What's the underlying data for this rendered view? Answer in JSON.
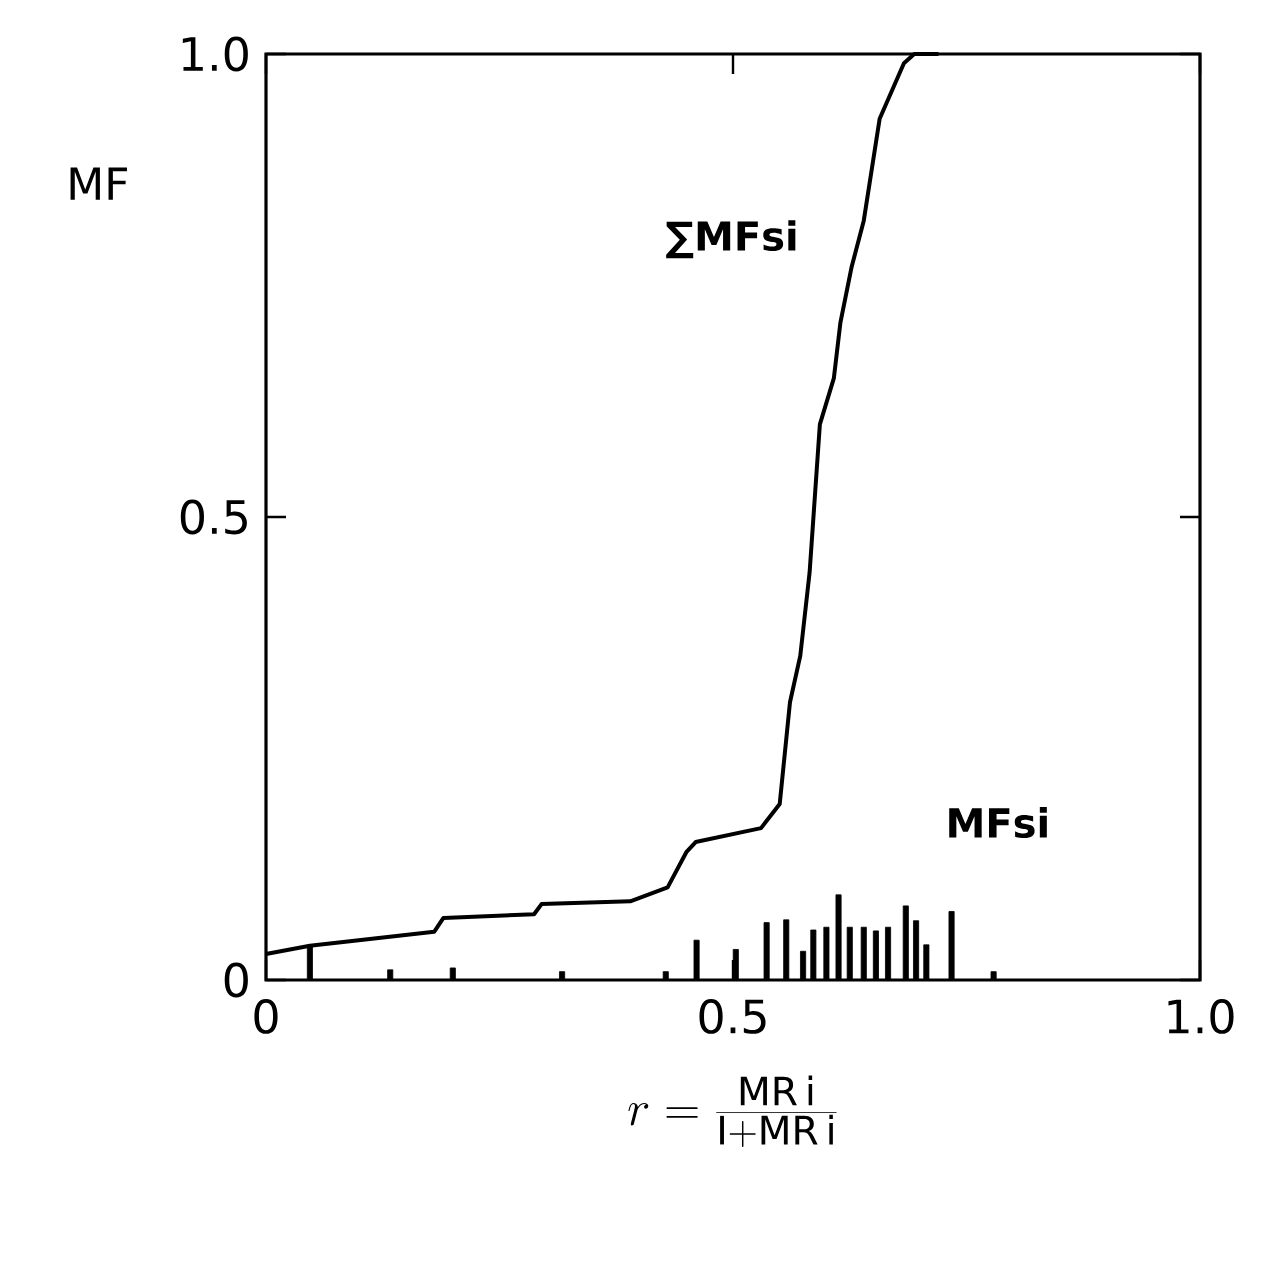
{
  "chart_data": {
    "type": "bar",
    "ylabel": "MF",
    "xlabel": "r = \\frac{\\mathrm{MR\\,i}}{\\mathrm{I} + \\mathrm{MR\\,i}}",
    "xlim": [
      0,
      1.0
    ],
    "ylim": [
      0,
      1.0
    ],
    "xticks": [
      0,
      0.5,
      {
        "value": 1.0,
        "label": "1.0"
      }
    ],
    "yticks": [
      0,
      0.5,
      {
        "value": 1.0,
        "label": "1.0"
      }
    ],
    "grid": false,
    "series": [
      {
        "name": "∑MFsi",
        "type": "line",
        "color": "#000000",
        "x": [
          0,
          0.047,
          0.18,
          0.19,
          0.287,
          0.295,
          0.39,
          0.43,
          0.45,
          0.46,
          0.53,
          0.55,
          0.561,
          0.572,
          0.582,
          0.593,
          0.608,
          0.615,
          0.627,
          0.64,
          0.657,
          0.683,
          0.694,
          0.72
        ],
        "values": [
          0.028,
          0.037,
          0.052,
          0.067,
          0.071,
          0.082,
          0.085,
          0.1,
          0.138,
          0.149,
          0.164,
          0.19,
          0.3,
          0.35,
          0.44,
          0.6,
          0.65,
          0.71,
          0.77,
          0.82,
          0.93,
          0.99,
          1.0,
          1.0
        ]
      },
      {
        "name": "MFsi",
        "color": "#000000",
        "x": [
          0.047,
          0.133,
          0.2,
          0.317,
          0.428,
          0.461,
          0.503,
          0.536,
          0.557,
          0.575,
          0.586,
          0.6,
          0.613,
          0.625,
          0.64,
          0.653,
          0.666,
          0.685,
          0.696,
          0.707,
          0.734,
          0.779
        ],
        "values": [
          0.037,
          0.011,
          0.013,
          0.009,
          0.009,
          0.043,
          0.033,
          0.062,
          0.065,
          0.031,
          0.054,
          0.057,
          0.092,
          0.057,
          0.057,
          0.053,
          0.057,
          0.08,
          0.064,
          0.038,
          0.074,
          0.009
        ]
      }
    ]
  }
}
